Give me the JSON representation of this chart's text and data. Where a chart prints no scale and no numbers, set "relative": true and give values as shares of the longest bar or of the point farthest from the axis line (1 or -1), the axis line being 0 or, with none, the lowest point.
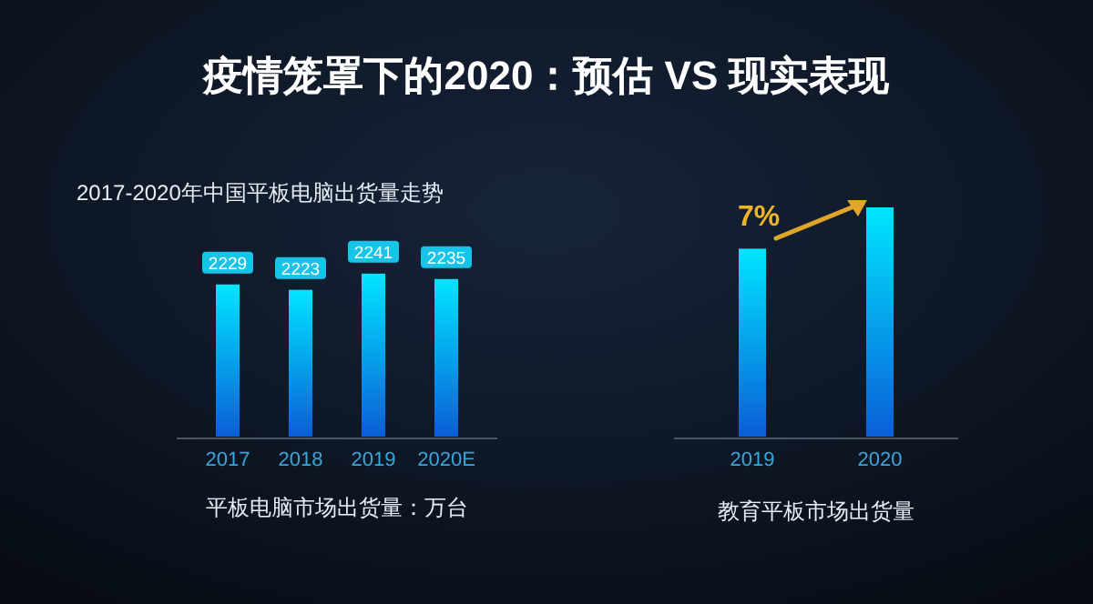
{
  "chart_data": [
    {
      "type": "bar",
      "title": "疫情笼罩下的2020：预估 VS 现实表现",
      "subtitle": "2017-2020年中国平板电脑出货量走势",
      "xlabel": "平板电脑市场出货量：万台",
      "categories": [
        "2017",
        "2018",
        "2019",
        "2020E"
      ],
      "values": [
        2229,
        2223,
        2241,
        2235
      ],
      "color": "#00e5ff",
      "ylim": [
        2060,
        2260
      ],
      "data_labels": true,
      "grid": false
    },
    {
      "type": "bar",
      "xlabel": "教育平板市场出货量",
      "categories": [
        "2019",
        "2020"
      ],
      "values": [
        0.82,
        1
      ],
      "relative": true,
      "color": "#00e5ff",
      "annotations": [
        "7%"
      ],
      "grid": false
    }
  ]
}
